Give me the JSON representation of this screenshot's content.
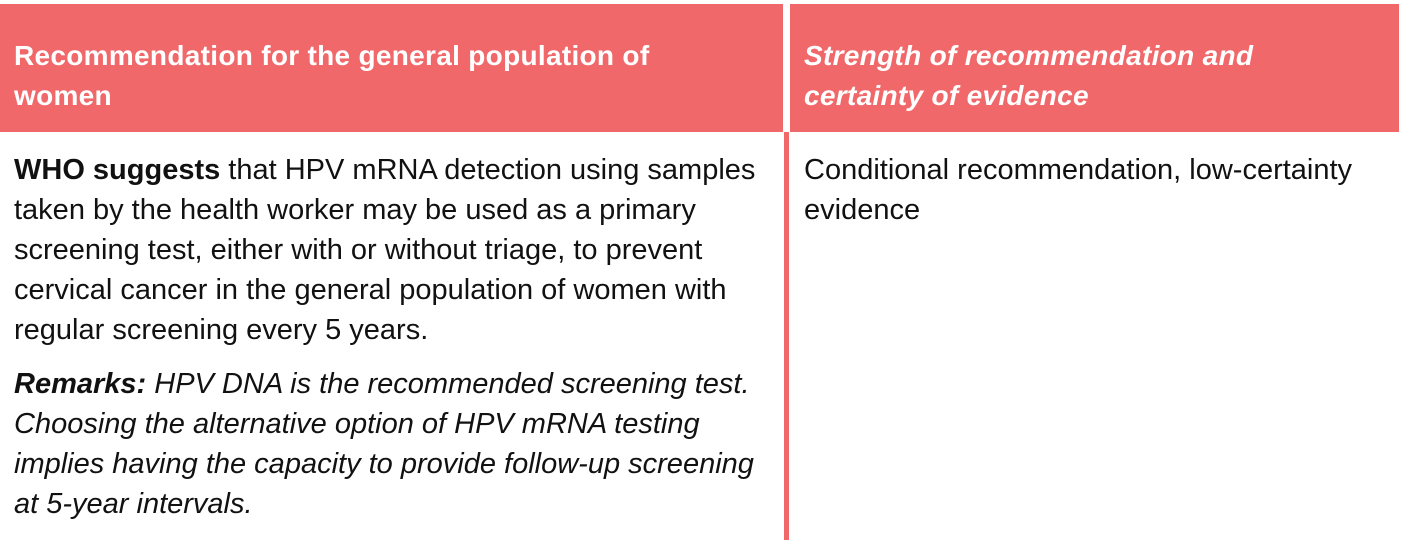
{
  "header": {
    "col1": "Recommendation for the general population of women",
    "col2": "Strength of recommendation and certainty of evidence"
  },
  "row": {
    "lead": "WHO suggests",
    "recommendation": " that HPV mRNA detection using samples taken by the health worker may be used as a primary screening test, either with or without triage, to prevent cervical cancer in the general population of women with regular screening every 5 years.",
    "remarks_label": "Remarks:",
    "remarks_text": " HPV DNA is the recommended screening test. Choosing the alternative option of HPV mRNA testing implies having the capacity to provide follow-up screening at 5-year intervals.",
    "strength": "Conditional recommendation, low-certainty evidence"
  },
  "colors": {
    "header_bg": "#f0686a",
    "header_text": "#ffffff",
    "body_text": "#111111"
  }
}
